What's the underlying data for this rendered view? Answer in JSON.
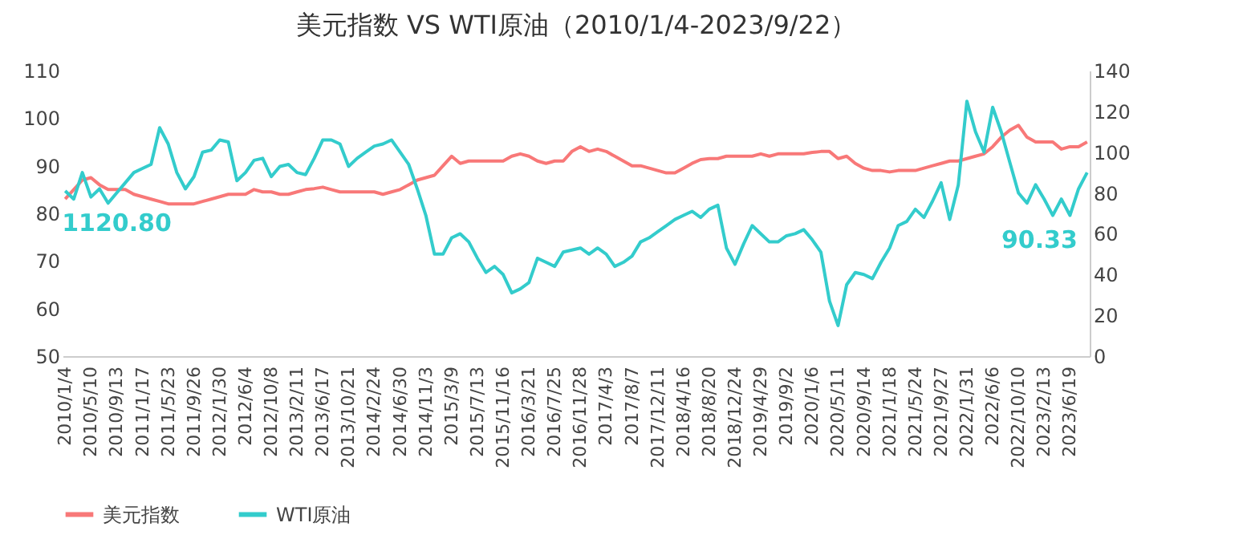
{
  "chart_data": {
    "type": "line",
    "title": "美元指数 VS WTI原油（2010/1/4-2023/9/22）",
    "categories": [
      "2010/1/4",
      null,
      null,
      "2010/5/10",
      null,
      null,
      "2010/9/13",
      null,
      null,
      "2011/1/17",
      null,
      null,
      "2011/5/23",
      null,
      null,
      "2011/9/26",
      null,
      null,
      "2012/1/30",
      null,
      null,
      "2012/6/4",
      null,
      null,
      "2012/10/8",
      null,
      null,
      "2013/2/11",
      null,
      null,
      "2013/6/17",
      null,
      null,
      "2013/10/21",
      null,
      null,
      "2014/2/24",
      null,
      null,
      "2014/6/30",
      null,
      null,
      "2014/11/3",
      null,
      null,
      "2015/3/9",
      null,
      null,
      "2015/7/13",
      null,
      null,
      "2015/11/16",
      null,
      null,
      "2016/3/21",
      null,
      null,
      "2016/7/25",
      null,
      null,
      "2016/11/28",
      null,
      null,
      "2017/4/3",
      null,
      null,
      "2017/8/7",
      null,
      null,
      "2017/12/11",
      null,
      null,
      "2018/4/16",
      null,
      null,
      "2018/8/20",
      null,
      null,
      "2018/12/24",
      null,
      null,
      "2019/4/29",
      null,
      null,
      "2019/9/2",
      null,
      null,
      "2020/1/6",
      null,
      null,
      "2020/5/11",
      null,
      null,
      "2020/9/14",
      null,
      null,
      "2021/1/18",
      null,
      null,
      "2021/5/24",
      null,
      null,
      "2021/9/27",
      null,
      null,
      "2022/1/31",
      null,
      null,
      "2022/6/6",
      null,
      null,
      "2022/10/10",
      null,
      null,
      "2023/2/13",
      null,
      null,
      "2023/6/19",
      null,
      null
    ],
    "series": [
      {
        "name": "美元指数",
        "color": "#f87878",
        "values": [
          83,
          85,
          87,
          87.5,
          86,
          85,
          85,
          85,
          84,
          83.5,
          83,
          82.5,
          82,
          82,
          82,
          82,
          82.5,
          83,
          83.5,
          84,
          84,
          84,
          85,
          84.5,
          84.5,
          84,
          84,
          84.5,
          85,
          85.2,
          85.5,
          85,
          84.5,
          84.5,
          84.5,
          84.5,
          84.5,
          84,
          84.5,
          85,
          86,
          87,
          87.5,
          88,
          90,
          92,
          90.5,
          91,
          91,
          91,
          91,
          91,
          92,
          92.5,
          92,
          91,
          90.5,
          91,
          91,
          93,
          94,
          93,
          93.5,
          93,
          92,
          91,
          90,
          90,
          89.5,
          89,
          88.5,
          88.5,
          89.5,
          90.5,
          91.3,
          91.5,
          91.5,
          92,
          92,
          92,
          92,
          92.5,
          92,
          92.5,
          92.5,
          92.5,
          92.5,
          92.8,
          93,
          93,
          91.5,
          92,
          90.5,
          89.5,
          89,
          89,
          88.7,
          89,
          89,
          89,
          89.5,
          90,
          90.5,
          91,
          91,
          91.5,
          92,
          92.5,
          94,
          96,
          97.5,
          98.5,
          96,
          95,
          95,
          95,
          93.5,
          94,
          94,
          95
        ]
      },
      {
        "name": "WTI原油",
        "color": "#33cccc",
        "axis": "y2",
        "values": [
          81,
          77,
          90,
          78,
          82,
          75,
          80,
          85,
          90,
          92,
          94,
          112,
          104,
          90,
          82,
          88,
          100,
          101,
          106,
          105,
          86,
          90,
          96,
          97,
          88,
          93,
          94,
          90,
          89,
          97,
          106,
          106,
          104,
          93,
          97,
          100,
          103,
          104,
          106,
          100,
          94,
          82,
          69,
          50,
          50,
          58,
          60,
          56,
          48,
          41,
          44,
          40,
          31,
          33,
          36,
          48,
          46,
          44,
          51,
          52,
          53,
          50,
          53,
          50,
          44,
          46,
          49,
          56,
          58,
          61,
          64,
          67,
          69,
          71,
          68,
          72,
          74,
          53,
          45,
          55,
          64,
          60,
          56,
          56,
          59,
          60,
          62,
          57,
          51,
          27,
          15,
          35,
          41,
          40,
          38,
          46,
          53,
          64,
          66,
          72,
          68,
          76,
          85,
          67,
          84,
          125,
          110,
          100,
          122,
          110,
          95,
          80,
          75,
          84,
          77,
          69,
          77,
          69,
          82,
          90
        ]
      }
    ],
    "ylim": [
      50,
      110
    ],
    "yticks": [
      50,
      60,
      70,
      80,
      90,
      100,
      110
    ],
    "y2lim": [
      0,
      140
    ],
    "y2ticks": [
      0,
      20,
      40,
      60,
      80,
      100,
      120,
      140
    ],
    "annotations": [
      "1120.80",
      "90.33"
    ],
    "legend": "bottom",
    "grid": false
  }
}
